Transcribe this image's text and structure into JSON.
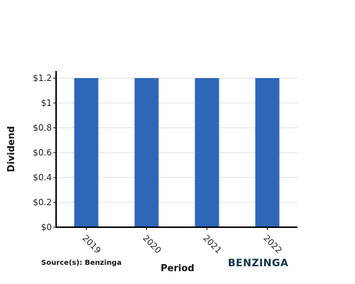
{
  "chart_data": {
    "type": "bar",
    "categories": [
      "2019",
      "2020",
      "2021",
      "2022"
    ],
    "values": [
      1.2,
      1.2,
      1.2,
      1.2
    ],
    "title": "",
    "xlabel": "Period",
    "ylabel": "Dividend",
    "ylim": [
      0,
      1.2
    ],
    "y_ticks": [
      {
        "value": 0,
        "label": "$0"
      },
      {
        "value": 0.2,
        "label": "$0.2"
      },
      {
        "value": 0.4,
        "label": "$0.4"
      },
      {
        "value": 0.6,
        "label": "$0.6"
      },
      {
        "value": 0.8,
        "label": "$0.8"
      },
      {
        "value": 1.0,
        "label": "$1"
      },
      {
        "value": 1.2,
        "label": "$1.2"
      }
    ],
    "grid": true,
    "legend": "none",
    "bar_color": "#2e67b8"
  },
  "footer": {
    "source": "Source(s): Benzinga",
    "brand": "BENZINGA",
    "brand_color": "#0f3350"
  }
}
